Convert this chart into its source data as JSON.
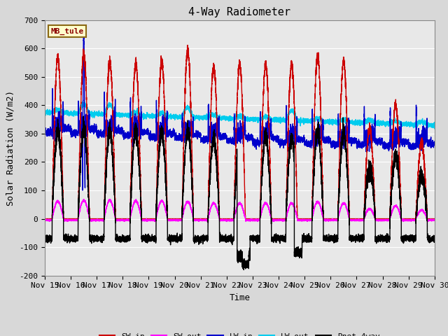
{
  "title": "4-Way Radiometer",
  "xlabel": "Time",
  "ylabel": "Solar Radiation (W/m2)",
  "ylim": [
    -200,
    700
  ],
  "yticks": [
    -200,
    -100,
    0,
    100,
    200,
    300,
    400,
    500,
    600,
    700
  ],
  "xtick_labels": [
    "Nov 15",
    "Nov 16",
    "Nov 17",
    "Nov 18",
    "Nov 19",
    "Nov 20",
    "Nov 21",
    "Nov 22",
    "Nov 23",
    "Nov 24",
    "Nov 25",
    "Nov 26",
    "Nov 27",
    "Nov 28",
    "Nov 29",
    "Nov 30"
  ],
  "station_label": "MB_tule",
  "series": {
    "SW_in": {
      "color": "#cc0000",
      "lw": 1.0
    },
    "SW_out": {
      "color": "#ff00ff",
      "lw": 1.0
    },
    "LW_in": {
      "color": "#0000cc",
      "lw": 1.0
    },
    "LW_out": {
      "color": "#00ccee",
      "lw": 1.0
    },
    "Rnet_4way": {
      "color": "#000000",
      "lw": 1.0
    }
  },
  "background_color": "#d8d8d8",
  "plot_bg_color": "#d8d8d8",
  "plot_area_color": "#e8e8e8",
  "grid_color": "#ffffff",
  "title_fontsize": 11,
  "label_fontsize": 9,
  "tick_fontsize": 8
}
